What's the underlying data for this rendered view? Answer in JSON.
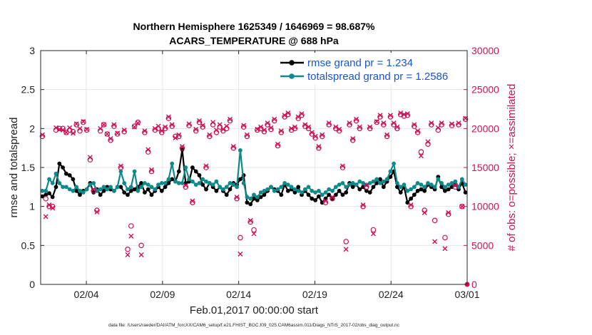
{
  "chart_data": {
    "type": "line",
    "title_line1": "Northern Hemisphere 1625349 / 1646969 = 98.687%",
    "title_line2": "ACARS_TEMPERATURE @ 688 hPa",
    "xlabel": "Feb.01,2017 00:00:00 start",
    "ylabel_left": "rmse and totalspread",
    "ylabel_right": "# of obs: o=possible; ×=assimilated",
    "footer": "data file: /Users/raeder/DAI/ATM_forcXX/CAM6_setup/f.e21.FHIST_BGC.f09_025.CAM6assim.011/Diags_NTrS_2017-02/obs_diag_output.nc",
    "x_range": [
      0,
      28
    ],
    "x_ticks": [
      3,
      8,
      13,
      18,
      23,
      28
    ],
    "x_ticklabels": [
      "02/04",
      "02/09",
      "02/14",
      "02/19",
      "02/24",
      "03/01"
    ],
    "ylim_left": [
      0,
      3
    ],
    "y_ticks_left": [
      "0",
      "0.5",
      "1",
      "1.5",
      "2",
      "2.5",
      "3"
    ],
    "ylim_right": [
      0,
      30000
    ],
    "y_ticks_right": [
      "0",
      "5000",
      "10000",
      "15000",
      "20000",
      "25000",
      "30000"
    ],
    "legend": [
      "rmse grand pr = 1.234",
      "totalspread grand pr = 1.2586"
    ],
    "colors": {
      "rmse": "#000000",
      "spread": "#0f8a8a",
      "obs": "#cc1157",
      "legend_text": "#1a55d0"
    },
    "series": [
      {
        "name": "rmse",
        "values": [
          1.13,
          1.15,
          1.17,
          1.12,
          1.25,
          1.55,
          1.5,
          1.42,
          1.4,
          1.35,
          1.2,
          1.15,
          1.2,
          1.22,
          1.3,
          1.18,
          1.22,
          1.15,
          1.2,
          1.25,
          1.22,
          1.2,
          1.25,
          1.25,
          1.18,
          1.15,
          1.2,
          1.22,
          1.25,
          1.3,
          1.18,
          1.22,
          1.15,
          1.2,
          1.25,
          1.2,
          1.25,
          1.3,
          1.35,
          1.32,
          1.45,
          1.73,
          1.3,
          1.32,
          1.5,
          1.45,
          1.4,
          1.28,
          1.22,
          1.3,
          1.25,
          1.2,
          1.25,
          1.2,
          1.15,
          1.22,
          1.3,
          1.28,
          1.35,
          1.4,
          1.05,
          1.03,
          1.1,
          1.08,
          1.12,
          1.15,
          1.2,
          1.25,
          1.22,
          1.2,
          1.15,
          1.28,
          1.2,
          1.22,
          1.18,
          1.25,
          1.15,
          1.2,
          1.15,
          1.1,
          1.08,
          1.13,
          1.05,
          1.1,
          1.15,
          1.1,
          1.15,
          1.2,
          1.15,
          1.18,
          1.3,
          1.25,
          1.28,
          1.22,
          1.25,
          1.2,
          1.18,
          1.25,
          1.3,
          1.35,
          1.25,
          1.32,
          1.38,
          1.45,
          1.25,
          1.18,
          1.25,
          1.05,
          1.1,
          1.15,
          1.2,
          1.22,
          1.2,
          1.28,
          1.25,
          1.22,
          1.38,
          1.25,
          1.2,
          1.22,
          1.25,
          1.28,
          1.22,
          1.3,
          1.18
        ],
        "marker": "o"
      },
      {
        "name": "totalspread",
        "values": [
          1.2,
          1.2,
          1.35,
          1.3,
          1.42,
          1.3,
          1.25,
          1.25,
          1.22,
          1.2,
          1.25,
          1.2,
          1.18,
          1.22,
          1.28,
          1.3,
          1.2,
          1.22,
          1.25,
          1.22,
          1.25,
          1.2,
          1.25,
          1.45,
          1.3,
          1.22,
          1.25,
          1.45,
          1.2,
          1.25,
          1.3,
          1.28,
          1.25,
          1.22,
          1.28,
          1.3,
          1.3,
          1.35,
          1.55,
          1.32,
          1.3,
          1.3,
          1.5,
          1.35,
          1.32,
          1.28,
          1.3,
          1.35,
          1.32,
          1.3,
          1.28,
          1.32,
          1.25,
          1.22,
          1.25,
          1.3,
          1.28,
          1.25,
          1.72,
          1.3,
          1.12,
          1.1,
          1.15,
          1.12,
          1.18,
          1.2,
          1.22,
          1.25,
          1.2,
          1.22,
          1.25,
          1.3,
          1.28,
          1.25,
          1.22,
          1.2,
          1.18,
          1.22,
          1.25,
          1.2,
          1.18,
          1.2,
          1.15,
          1.18,
          1.22,
          1.2,
          1.25,
          1.28,
          1.3,
          1.25,
          1.28,
          1.3,
          1.28,
          1.32,
          1.3,
          1.28,
          1.3,
          1.32,
          1.35,
          1.3,
          1.32,
          1.35,
          1.45,
          1.55,
          1.3,
          1.25,
          1.28,
          1.2,
          1.22,
          1.25,
          1.3,
          1.28,
          1.25,
          1.3,
          1.28,
          1.25,
          1.35,
          1.3,
          1.25,
          1.28,
          1.3,
          1.32,
          1.25,
          1.35,
          1.28
        ],
        "marker": "o"
      },
      {
        "name": "obs_possible",
        "values": [
          19000,
          11000,
          10000,
          10000,
          19800,
          20000,
          20000,
          19500,
          19800,
          19600,
          20500,
          19700,
          20800,
          19800,
          16000,
          12000,
          9500,
          19700,
          20500,
          19300,
          18500,
          20300,
          19300,
          15000,
          19600,
          4500,
          7500,
          20300,
          20800,
          5000,
          19500,
          17000,
          14500,
          19800,
          20000,
          19500,
          20000,
          21300,
          20300,
          19000,
          19000,
          17500,
          12500,
          20400,
          10500,
          19700,
          20800,
          20200,
          15000,
          19000,
          20500,
          19500,
          20200,
          19700,
          20000,
          21000,
          17500,
          11000,
          6000,
          20200,
          19000,
          8000,
          7000,
          19800,
          20000,
          19600,
          20500,
          19900,
          21000,
          17800,
          19500,
          21500,
          21800,
          19800,
          20000,
          21300,
          21700,
          20300,
          20000,
          19300,
          18800,
          17500,
          19000,
          10500,
          20500,
          11000,
          20000,
          19700,
          15000,
          5500,
          20500,
          18500,
          21000,
          20000,
          10000,
          12500,
          20000,
          7000,
          20800,
          21500,
          20500,
          19000,
          21500,
          20500,
          20000,
          21800,
          21600,
          21700,
          10000,
          20300,
          19500,
          17000,
          9500,
          18000,
          20500,
          8200,
          19800,
          20500,
          6000,
          9000,
          20400,
          12500,
          20500,
          10000,
          21200
        ],
        "marker": "o"
      },
      {
        "name": "obs_assimilated",
        "values": [
          19200,
          8700,
          10200,
          9800,
          20100,
          19900,
          19800,
          19500,
          20100,
          19400,
          20600,
          20000,
          20900,
          19900,
          16300,
          12200,
          9300,
          20000,
          20500,
          19300,
          18700,
          20500,
          19400,
          15200,
          19800,
          3800,
          6200,
          20200,
          20700,
          3800,
          19700,
          17300,
          14700,
          20000,
          20300,
          19700,
          20200,
          21500,
          20500,
          18800,
          19200,
          17700,
          12700,
          20600,
          10700,
          19900,
          21000,
          20400,
          15200,
          19200,
          20800,
          19800,
          20500,
          19900,
          20300,
          21200,
          17700,
          11200,
          3900,
          20400,
          19200,
          8200,
          6500,
          19900,
          20200,
          19800,
          20700,
          20100,
          21200,
          18000,
          19700,
          21700,
          22000,
          20000,
          20200,
          21500,
          21900,
          20500,
          20200,
          19500,
          19000,
          17700,
          19200,
          10700,
          20700,
          11200,
          20200,
          19900,
          15200,
          4500,
          20700,
          18700,
          21200,
          20200,
          10200,
          12700,
          20200,
          6500,
          20900,
          21700,
          20700,
          19200,
          21700,
          20700,
          20200,
          22000,
          21800,
          21900,
          10200,
          20500,
          19700,
          16500,
          9200,
          18300,
          20700,
          5500,
          20100,
          20700,
          4600,
          9200,
          20600,
          12700,
          20700,
          10000,
          21300
        ],
        "marker": "x"
      }
    ]
  }
}
